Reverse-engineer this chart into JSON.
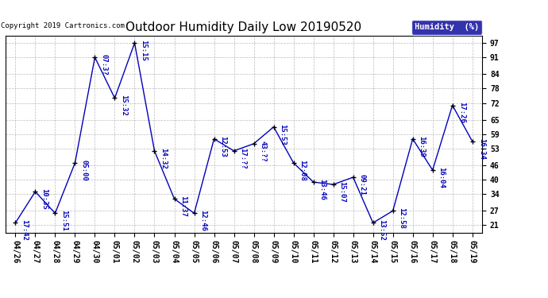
{
  "title": "Outdoor Humidity Daily Low 20190520",
  "copyright": "Copyright 2019 Cartronics.com",
  "legend_label": "Humidity  (%)",
  "x_labels": [
    "04/26",
    "04/27",
    "04/28",
    "04/29",
    "04/30",
    "05/01",
    "05/02",
    "05/03",
    "05/04",
    "05/05",
    "05/06",
    "05/07",
    "05/08",
    "05/09",
    "05/10",
    "05/11",
    "05/12",
    "05/13",
    "05/14",
    "05/15",
    "05/16",
    "05/17",
    "05/18",
    "05/19"
  ],
  "y_values": [
    22,
    35,
    26,
    47,
    91,
    74,
    97,
    52,
    32,
    26,
    57,
    52,
    55,
    62,
    47,
    39,
    38,
    41,
    22,
    27,
    57,
    44,
    71,
    56
  ],
  "point_labels": [
    "17:42",
    "10:35",
    "15:51",
    "05:00",
    "07:3?",
    "15:32",
    "15:15",
    "14:32",
    "11:37",
    "12:46",
    "12:53",
    "17:??",
    "43:??",
    "15:53",
    "12:08",
    "13:46",
    "15:07",
    "09:21",
    "13:52",
    "12:58",
    "16:39",
    "16:04",
    "17:26",
    "16:34"
  ],
  "yticks": [
    21,
    27,
    34,
    40,
    46,
    53,
    59,
    65,
    72,
    78,
    84,
    91,
    97
  ],
  "line_color": "#0000bb",
  "marker_color": "#000000",
  "bg_color": "#ffffff",
  "grid_color": "#bbbbbb",
  "title_fontsize": 11,
  "axis_fontsize": 7,
  "label_fontsize": 6.5,
  "legend_bg": "#000099",
  "legend_fg": "#ffffff",
  "ymin": 18,
  "ymax": 100
}
